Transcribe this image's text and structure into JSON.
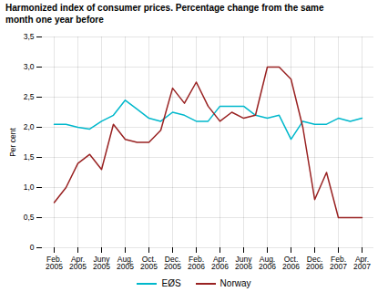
{
  "chart_data": {
    "type": "line",
    "title": "Harmonized index of consumer prices. Percentage change from the same\nmonth one year before",
    "ylabel": "Per cent",
    "categories": [
      "Feb.\n2005",
      null,
      "Apr.\n2005",
      null,
      "Juny\n2005",
      null,
      "Aug.\n2005",
      null,
      "Oct.\n2005",
      null,
      "Dec.\n2005",
      null,
      "Feb.\n2006",
      null,
      "Apr.\n2006",
      null,
      "Juny\n2006",
      null,
      "Aug.\n2006",
      null,
      "Oct.\n2006",
      null,
      "Dec.\n2006",
      null,
      "Feb.\n2007",
      null,
      "Apr.\n2007"
    ],
    "series": [
      {
        "name": "EØS",
        "color": "#00b8cc",
        "values": [
          2.05,
          2.05,
          2.0,
          1.97,
          2.1,
          2.2,
          2.45,
          2.3,
          2.15,
          2.1,
          2.25,
          2.2,
          2.1,
          2.1,
          2.35,
          2.35,
          2.35,
          2.2,
          2.15,
          2.2,
          1.8,
          2.1,
          2.05,
          2.05,
          2.15,
          2.1,
          2.15
        ]
      },
      {
        "name": "Norway",
        "color": "#992222",
        "values": [
          0.75,
          1.0,
          1.4,
          1.55,
          1.3,
          2.05,
          1.8,
          1.75,
          1.75,
          1.95,
          2.65,
          2.4,
          2.75,
          2.35,
          2.1,
          2.25,
          2.15,
          2.2,
          3.0,
          3.0,
          2.8,
          2.0,
          0.8,
          1.25,
          0.5,
          0.5,
          0.5
        ]
      }
    ],
    "ylim": [
      0,
      3.5
    ],
    "yticks": [
      0,
      {
        "value": 0.5,
        "label": "0,5"
      },
      {
        "value": 1.0,
        "label": "1,0"
      },
      {
        "value": 1.5,
        "label": "1,5"
      },
      {
        "value": 2.0,
        "label": "2,0"
      },
      {
        "value": 2.5,
        "label": "2,5"
      },
      {
        "value": 3.0,
        "label": "3,0"
      },
      {
        "value": 3.5,
        "label": "3,5"
      }
    ],
    "grid": true,
    "legend": "bottom"
  }
}
